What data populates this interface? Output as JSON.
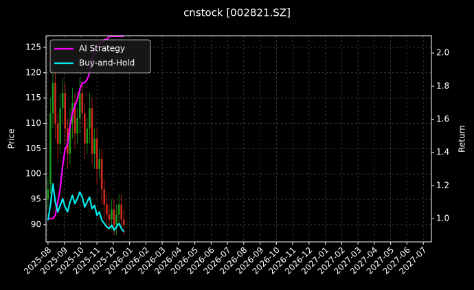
{
  "chart_data": {
    "type": "candlestick",
    "title": "cnstock [002821.SZ]",
    "ylabel": "Price",
    "y2label": "Return",
    "grid": true,
    "legend": "upper left",
    "xlim": [
      -0.12,
      23.5
    ],
    "xticks": [
      {
        "value": 0,
        "label": "2025-08"
      },
      {
        "value": 1,
        "label": "2025-09"
      },
      {
        "value": 2,
        "label": "2025-10"
      },
      {
        "value": 3,
        "label": "2025-11"
      },
      {
        "value": 4,
        "label": "2025-12"
      },
      {
        "value": 5,
        "label": "2026-01"
      },
      {
        "value": 6,
        "label": "2026-02"
      },
      {
        "value": 7,
        "label": "2026-03"
      },
      {
        "value": 8,
        "label": "2026-04"
      },
      {
        "value": 9,
        "label": "2026-05"
      },
      {
        "value": 10,
        "label": "2026-06"
      },
      {
        "value": 11,
        "label": "2026-07"
      },
      {
        "value": 12,
        "label": "2026-08"
      },
      {
        "value": 13,
        "label": "2026-09"
      },
      {
        "value": 14,
        "label": "2026-10"
      },
      {
        "value": 15,
        "label": "2026-11"
      },
      {
        "value": 16,
        "label": "2026-12"
      },
      {
        "value": 17,
        "label": "2027-01"
      },
      {
        "value": 18,
        "label": "2027-02"
      },
      {
        "value": 19,
        "label": "2027-03"
      },
      {
        "value": 20,
        "label": "2027-04"
      },
      {
        "value": 21,
        "label": "2027-05"
      },
      {
        "value": 22,
        "label": "2027-06"
      },
      {
        "value": 23,
        "label": "2027-07"
      }
    ],
    "ylim": [
      86.6,
      127.3
    ],
    "yticks": [
      90,
      95,
      100,
      105,
      110,
      115,
      120,
      125
    ],
    "y2lim": [
      0.859,
      2.104
    ],
    "y2ticks": [
      {
        "value": 1,
        "label": "1.0"
      },
      1.2,
      1.4,
      1.6,
      1.8,
      {
        "value": 2,
        "label": "2.0"
      }
    ],
    "candles": {
      "up_color": "#1a9c1a",
      "down_color": "#d42a1a",
      "x": [
        0,
        0.15,
        0.3,
        0.45,
        0.6,
        0.75,
        0.9,
        1.05,
        1.2,
        1.35,
        1.5,
        1.65,
        1.8,
        1.95,
        2.1,
        2.25,
        2.4,
        2.55,
        2.7,
        2.85,
        3,
        3.15,
        3.3,
        3.45,
        3.6,
        3.75,
        3.9,
        4.05,
        4.2,
        4.35,
        4.5,
        4.65
      ],
      "open": [
        95,
        98,
        112,
        118,
        110,
        106,
        113,
        116,
        109,
        104,
        110,
        114,
        108,
        111,
        116,
        112,
        106,
        109,
        113,
        104,
        107,
        101,
        103,
        97,
        94,
        92,
        91,
        93,
        90,
        92,
        94,
        91
      ],
      "high": [
        99,
        115,
        121,
        120,
        112,
        116,
        119,
        118,
        111,
        113,
        117,
        116,
        113,
        119,
        118,
        114,
        111,
        116,
        115,
        109,
        109,
        105,
        105,
        99,
        96,
        94,
        95,
        95,
        94,
        96,
        96,
        93
      ],
      "low": [
        93,
        96,
        109,
        107,
        103,
        104,
        110,
        106,
        101,
        102,
        107,
        105,
        106,
        108,
        109,
        103,
        104,
        106,
        102,
        101,
        98,
        99,
        94,
        91,
        89,
        89,
        89,
        88,
        88,
        90,
        89,
        88
      ],
      "close": [
        97,
        112,
        118,
        110,
        106,
        113,
        116,
        109,
        104,
        110,
        114,
        108,
        111,
        116,
        112,
        106,
        109,
        113,
        104,
        107,
        101,
        103,
        97,
        94,
        92,
        91,
        93,
        90,
        92,
        94,
        91,
        90
      ]
    },
    "series": [
      {
        "name": "AI Strategy",
        "color": "#ff00ff",
        "axis": "y2",
        "x": [
          0,
          0.15,
          0.3,
          0.45,
          0.6,
          0.75,
          0.9,
          1.05,
          1.2,
          1.35,
          1.5,
          1.65,
          1.8,
          1.95,
          2.1,
          2.25,
          2.4,
          2.55,
          2.7,
          2.85,
          3,
          3.15,
          3.3,
          3.45,
          3.6,
          3.75,
          3.9,
          4.05,
          4.2,
          4.35,
          4.5,
          4.65
        ],
        "values": [
          1.0,
          1.0,
          1.0,
          1.02,
          1.1,
          1.18,
          1.32,
          1.42,
          1.45,
          1.56,
          1.64,
          1.68,
          1.72,
          1.78,
          1.82,
          1.82,
          1.84,
          1.88,
          1.96,
          2.0,
          2.04,
          2.06,
          2.06,
          2.08,
          2.08,
          2.1,
          2.1,
          2.1,
          2.1,
          2.1,
          2.1,
          2.1
        ]
      },
      {
        "name": "Buy-and-Hold",
        "color": "#00eeee",
        "axis": "y2",
        "x": [
          0,
          0.15,
          0.3,
          0.45,
          0.6,
          0.75,
          0.9,
          1.05,
          1.2,
          1.35,
          1.5,
          1.65,
          1.8,
          1.95,
          2.1,
          2.25,
          2.4,
          2.55,
          2.7,
          2.85,
          3,
          3.15,
          3.3,
          3.45,
          3.6,
          3.75,
          3.9,
          4.05,
          4.2,
          4.35,
          4.5,
          4.65
        ],
        "values": [
          0.99,
          1.08,
          1.21,
          1.1,
          1.04,
          1.08,
          1.12,
          1.07,
          1.04,
          1.1,
          1.14,
          1.09,
          1.12,
          1.16,
          1.13,
          1.07,
          1.1,
          1.13,
          1.06,
          1.08,
          1.02,
          1.04,
          0.99,
          0.97,
          0.95,
          0.94,
          0.96,
          0.93,
          0.95,
          0.97,
          0.94,
          0.92
        ]
      }
    ]
  }
}
